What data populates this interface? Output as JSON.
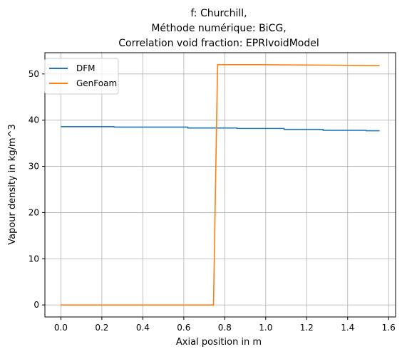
{
  "chart_data": {
    "type": "line",
    "title_lines": [
      "f: Churchill,",
      "Méthode numérique: BiCG,",
      "Correlation void fraction: EPRIvoidModel"
    ],
    "xlabel": "Axial position in m",
    "ylabel": "Vapour density in kg/m^3",
    "xlim": [
      -0.078,
      1.634
    ],
    "ylim": [
      -2.6,
      54.6
    ],
    "x_ticks": [
      0.0,
      0.2,
      0.4,
      0.6,
      0.8,
      1.0,
      1.2,
      1.4,
      1.6
    ],
    "x_tick_labels": [
      "0.0",
      "0.2",
      "0.4",
      "0.6",
      "0.8",
      "1.0",
      "1.2",
      "1.4",
      "1.6"
    ],
    "y_ticks": [
      0,
      10,
      20,
      30,
      40,
      50
    ],
    "y_tick_labels": [
      "0",
      "10",
      "20",
      "30",
      "40",
      "50"
    ],
    "grid": true,
    "legend_position": "top-left",
    "series": [
      {
        "name": "DFM",
        "color": "#1f77b4",
        "points": [
          [
            0.0,
            38.6
          ],
          [
            0.26,
            38.6
          ],
          [
            0.26,
            38.5
          ],
          [
            0.62,
            38.5
          ],
          [
            0.62,
            38.3
          ],
          [
            0.86,
            38.3
          ],
          [
            0.86,
            38.2
          ],
          [
            1.09,
            38.2
          ],
          [
            1.09,
            38.0
          ],
          [
            1.28,
            38.0
          ],
          [
            1.28,
            37.8
          ],
          [
            1.49,
            37.8
          ],
          [
            1.49,
            37.7
          ],
          [
            1.556,
            37.7
          ]
        ]
      },
      {
        "name": "GenFoam",
        "color": "#ff7f0e",
        "points": [
          [
            0.0,
            0.0
          ],
          [
            0.745,
            0.0
          ],
          [
            0.765,
            52.0
          ],
          [
            1.0,
            52.0
          ],
          [
            1.3,
            51.9
          ],
          [
            1.556,
            51.8
          ]
        ]
      }
    ]
  }
}
